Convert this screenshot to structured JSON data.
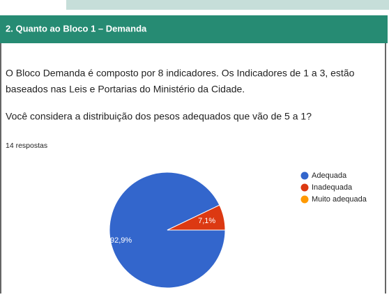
{
  "section": {
    "title": "2. Quanto ao Bloco 1 – Demanda"
  },
  "description": [
    "O Bloco Demanda é composto por 8 indicadores. Os Indicadores de 1 a 3, estão",
    "baseados nas Leis e Portarias do Ministério da Cidade."
  ],
  "question": "Você considera a distribuição dos pesos adequados que vão de 5 a 1?",
  "responses": "14 respostas",
  "chart_data": {
    "type": "pie",
    "categories": [
      "Adequada",
      "Inadequada",
      "Muito adequada"
    ],
    "values": [
      92.9,
      7.1,
      0
    ],
    "value_labels": [
      "92,9%",
      "7,1%",
      null
    ],
    "colors": [
      "#3366cc",
      "#dc3912",
      "#ff9900"
    ],
    "legend": "right"
  }
}
